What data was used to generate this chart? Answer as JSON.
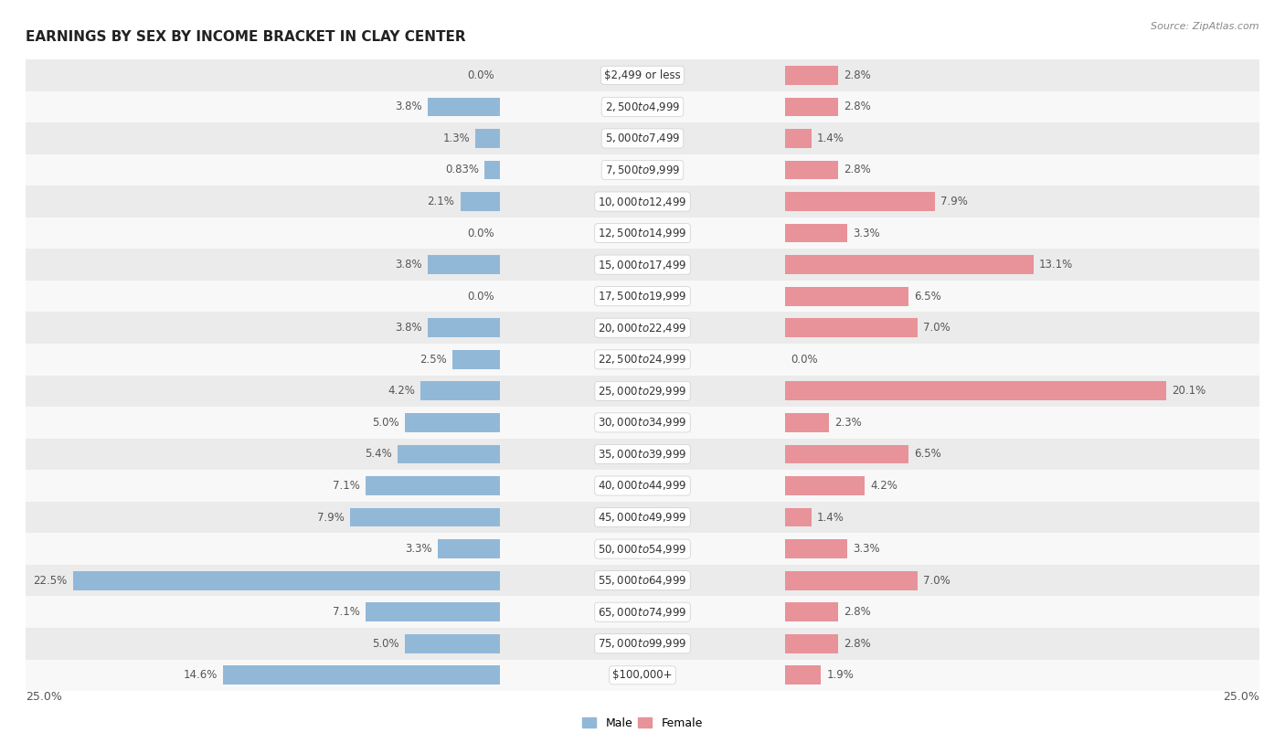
{
  "title": "EARNINGS BY SEX BY INCOME BRACKET IN CLAY CENTER",
  "source": "Source: ZipAtlas.com",
  "categories": [
    "$2,499 or less",
    "$2,500 to $4,999",
    "$5,000 to $7,499",
    "$7,500 to $9,999",
    "$10,000 to $12,499",
    "$12,500 to $14,999",
    "$15,000 to $17,499",
    "$17,500 to $19,999",
    "$20,000 to $22,499",
    "$22,500 to $24,999",
    "$25,000 to $29,999",
    "$30,000 to $34,999",
    "$35,000 to $39,999",
    "$40,000 to $44,999",
    "$45,000 to $49,999",
    "$50,000 to $54,999",
    "$55,000 to $64,999",
    "$65,000 to $74,999",
    "$75,000 to $99,999",
    "$100,000+"
  ],
  "male_values": [
    0.0,
    3.8,
    1.3,
    0.83,
    2.1,
    0.0,
    3.8,
    0.0,
    3.8,
    2.5,
    4.2,
    5.0,
    5.4,
    7.1,
    7.9,
    3.3,
    22.5,
    7.1,
    5.0,
    14.6
  ],
  "female_values": [
    2.8,
    2.8,
    1.4,
    2.8,
    7.9,
    3.3,
    13.1,
    6.5,
    7.0,
    0.0,
    20.1,
    2.3,
    6.5,
    4.2,
    1.4,
    3.3,
    7.0,
    2.8,
    2.8,
    1.9
  ],
  "male_color": "#92b8d8",
  "female_color": "#e8929a",
  "bg_odd": "#ebebeb",
  "bg_even": "#f8f8f8",
  "xlim": 25.0,
  "legend_male": "Male",
  "legend_female": "Female",
  "bar_height": 0.6,
  "label_fontsize": 8.5,
  "val_fontsize": 8.5,
  "title_fontsize": 11,
  "source_fontsize": 8
}
